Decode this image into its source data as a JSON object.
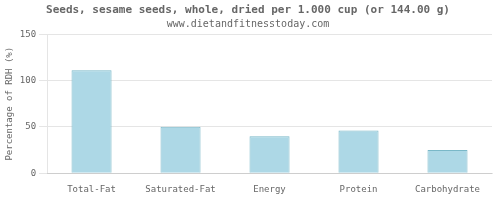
{
  "chart_data": {
    "type": "bar",
    "title": "Seeds, sesame seeds, whole, dried per 1.000 cup (or 144.00 g)",
    "subtitle": "www.dietandfitnesstoday.com",
    "categories": [
      "Total-Fat",
      "Saturated-Fat",
      "Energy",
      "Protein",
      "Carbohydrate"
    ],
    "values": [
      111,
      50,
      40,
      46,
      25
    ],
    "color": "#add8e6",
    "ylabel": "Percentage of RDH (%)",
    "ylim": [
      0,
      150
    ],
    "yticks": [
      0,
      50,
      100,
      150
    ],
    "grid": true
  }
}
